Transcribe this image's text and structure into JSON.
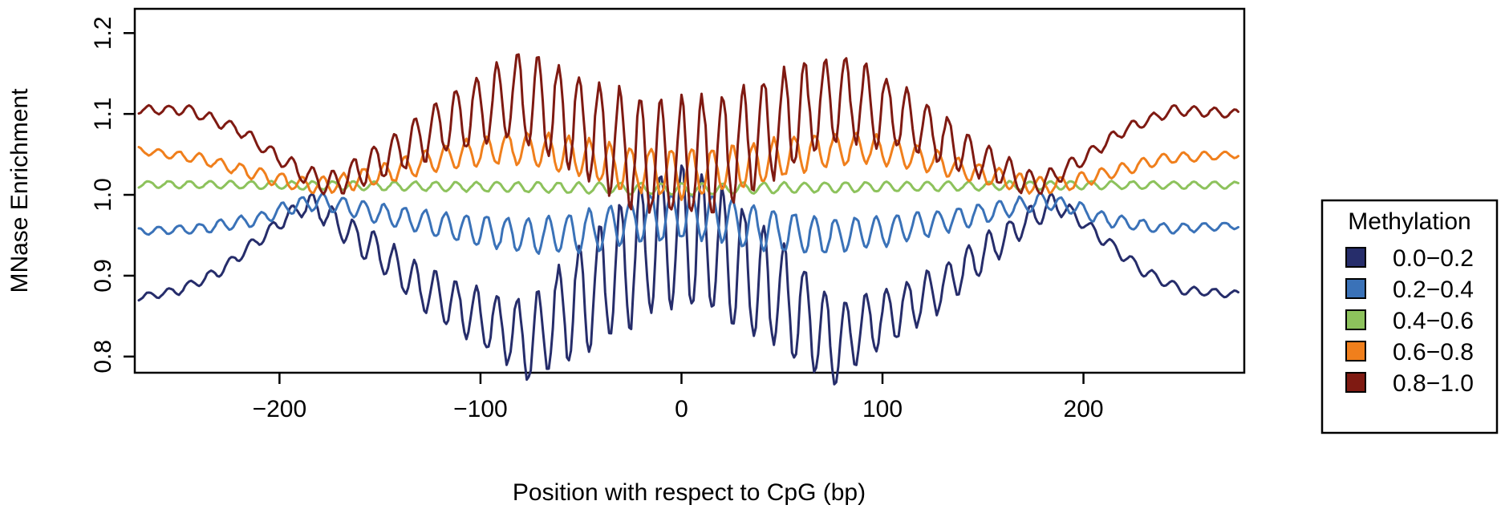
{
  "chart_data": {
    "type": "line",
    "title": "",
    "xlabel": "Position with respect to CpG (bp)",
    "ylabel": "MNase Enrichment",
    "xlim": [
      -272,
      280
    ],
    "ylim": [
      0.78,
      1.23
    ],
    "x_ticks": [
      -200,
      -100,
      0,
      100,
      200
    ],
    "x_tick_labels": [
      "−200",
      "−100",
      "0",
      "100",
      "200"
    ],
    "y_ticks": [
      0.8,
      0.9,
      1.0,
      1.1,
      1.2
    ],
    "y_tick_labels": [
      "0.8",
      "0.9",
      "1.0",
      "1.1",
      "1.2"
    ],
    "grid": false,
    "legend": {
      "title": "Methylation",
      "position": "right"
    },
    "x_range": [
      -270,
      277
    ],
    "series": [
      {
        "name": "0.0−0.2",
        "color": "#262d6b",
        "points": [
          [
            -270,
            0.873
          ],
          [
            -250,
            0.882
          ],
          [
            -230,
            0.905
          ],
          [
            -210,
            0.945
          ],
          [
            -195,
            0.975
          ],
          [
            -185,
            0.99
          ],
          [
            -175,
            0.972
          ],
          [
            -160,
            0.945
          ],
          [
            -145,
            0.918
          ],
          [
            -130,
            0.885
          ],
          [
            -115,
            0.865
          ],
          [
            -100,
            0.848
          ],
          [
            -85,
            0.83
          ],
          [
            -75,
            0.818
          ],
          [
            -65,
            0.845
          ],
          [
            -50,
            0.87
          ],
          [
            -35,
            0.9
          ],
          [
            -20,
            0.93
          ],
          [
            -10,
            0.945
          ],
          [
            0,
            0.95
          ],
          [
            10,
            0.945
          ],
          [
            20,
            0.93
          ],
          [
            35,
            0.9
          ],
          [
            50,
            0.87
          ],
          [
            65,
            0.845
          ],
          [
            75,
            0.818
          ],
          [
            85,
            0.83
          ],
          [
            100,
            0.848
          ],
          [
            115,
            0.865
          ],
          [
            130,
            0.885
          ],
          [
            145,
            0.918
          ],
          [
            160,
            0.945
          ],
          [
            175,
            0.972
          ],
          [
            185,
            0.99
          ],
          [
            195,
            0.975
          ],
          [
            210,
            0.945
          ],
          [
            230,
            0.905
          ],
          [
            250,
            0.882
          ],
          [
            277,
            0.877
          ]
        ],
        "osc_amplitude": [
          [
            -270,
            0.004
          ],
          [
            -200,
            0.008
          ],
          [
            -150,
            0.022
          ],
          [
            -100,
            0.035
          ],
          [
            -60,
            0.06
          ],
          [
            -20,
            0.085
          ],
          [
            0,
            0.09
          ],
          [
            20,
            0.085
          ],
          [
            60,
            0.06
          ],
          [
            100,
            0.035
          ],
          [
            150,
            0.022
          ],
          [
            200,
            0.008
          ],
          [
            277,
            0.004
          ]
        ]
      },
      {
        "name": "0.2−0.4",
        "color": "#3a72b8",
        "points": [
          [
            -270,
            0.955
          ],
          [
            -240,
            0.958
          ],
          [
            -210,
            0.97
          ],
          [
            -195,
            0.985
          ],
          [
            -180,
            0.992
          ],
          [
            -160,
            0.982
          ],
          [
            -130,
            0.967
          ],
          [
            -100,
            0.955
          ],
          [
            -70,
            0.948
          ],
          [
            -40,
            0.958
          ],
          [
            -20,
            0.97
          ],
          [
            0,
            0.975
          ],
          [
            20,
            0.97
          ],
          [
            40,
            0.958
          ],
          [
            70,
            0.948
          ],
          [
            100,
            0.955
          ],
          [
            130,
            0.967
          ],
          [
            160,
            0.982
          ],
          [
            180,
            0.992
          ],
          [
            195,
            0.985
          ],
          [
            210,
            0.97
          ],
          [
            240,
            0.958
          ],
          [
            277,
            0.962
          ]
        ],
        "osc_amplitude": [
          [
            -270,
            0.004
          ],
          [
            -150,
            0.012
          ],
          [
            -50,
            0.025
          ],
          [
            0,
            0.03
          ],
          [
            50,
            0.025
          ],
          [
            150,
            0.012
          ],
          [
            277,
            0.004
          ]
        ]
      },
      {
        "name": "0.4−0.6",
        "color": "#8dc25c",
        "points": [
          [
            -270,
            1.013
          ],
          [
            -200,
            1.012
          ],
          [
            -100,
            1.01
          ],
          [
            0,
            1.007
          ],
          [
            100,
            1.01
          ],
          [
            200,
            1.012
          ],
          [
            277,
            1.012
          ]
        ],
        "osc_amplitude": [
          [
            -270,
            0.004
          ],
          [
            0,
            0.007
          ],
          [
            277,
            0.004
          ]
        ]
      },
      {
        "name": "0.6−0.8",
        "color": "#f07f1c",
        "points": [
          [
            -270,
            1.055
          ],
          [
            -240,
            1.045
          ],
          [
            -210,
            1.025
          ],
          [
            -190,
            1.013
          ],
          [
            -175,
            1.012
          ],
          [
            -150,
            1.025
          ],
          [
            -120,
            1.045
          ],
          [
            -90,
            1.058
          ],
          [
            -60,
            1.052
          ],
          [
            -30,
            1.035
          ],
          [
            0,
            1.025
          ],
          [
            30,
            1.035
          ],
          [
            60,
            1.052
          ],
          [
            90,
            1.058
          ],
          [
            120,
            1.045
          ],
          [
            150,
            1.025
          ],
          [
            175,
            1.012
          ],
          [
            190,
            1.013
          ],
          [
            210,
            1.025
          ],
          [
            240,
            1.045
          ],
          [
            277,
            1.05
          ]
        ],
        "osc_amplitude": [
          [
            -270,
            0.004
          ],
          [
            -150,
            0.012
          ],
          [
            -80,
            0.02
          ],
          [
            0,
            0.03
          ],
          [
            80,
            0.02
          ],
          [
            150,
            0.012
          ],
          [
            277,
            0.004
          ]
        ]
      },
      {
        "name": "0.8−1.0",
        "color": "#7f1a12",
        "points": [
          [
            -270,
            1.105
          ],
          [
            -245,
            1.105
          ],
          [
            -220,
            1.08
          ],
          [
            -200,
            1.045
          ],
          [
            -185,
            1.022
          ],
          [
            -175,
            1.012
          ],
          [
            -160,
            1.03
          ],
          [
            -140,
            1.055
          ],
          [
            -120,
            1.085
          ],
          [
            -100,
            1.105
          ],
          [
            -80,
            1.12
          ],
          [
            -60,
            1.1
          ],
          [
            -40,
            1.075
          ],
          [
            -20,
            1.05
          ],
          [
            0,
            1.045
          ],
          [
            20,
            1.05
          ],
          [
            40,
            1.075
          ],
          [
            60,
            1.1
          ],
          [
            80,
            1.12
          ],
          [
            100,
            1.105
          ],
          [
            120,
            1.085
          ],
          [
            140,
            1.055
          ],
          [
            160,
            1.03
          ],
          [
            175,
            1.012
          ],
          [
            185,
            1.022
          ],
          [
            200,
            1.045
          ],
          [
            220,
            1.08
          ],
          [
            245,
            1.105
          ],
          [
            277,
            1.1
          ]
        ],
        "osc_amplitude": [
          [
            -270,
            0.005
          ],
          [
            -200,
            0.008
          ],
          [
            -140,
            0.025
          ],
          [
            -100,
            0.045
          ],
          [
            -60,
            0.06
          ],
          [
            -20,
            0.07
          ],
          [
            0,
            0.07
          ],
          [
            20,
            0.07
          ],
          [
            60,
            0.06
          ],
          [
            100,
            0.045
          ],
          [
            140,
            0.025
          ],
          [
            200,
            0.008
          ],
          [
            277,
            0.005
          ]
        ]
      }
    ]
  }
}
